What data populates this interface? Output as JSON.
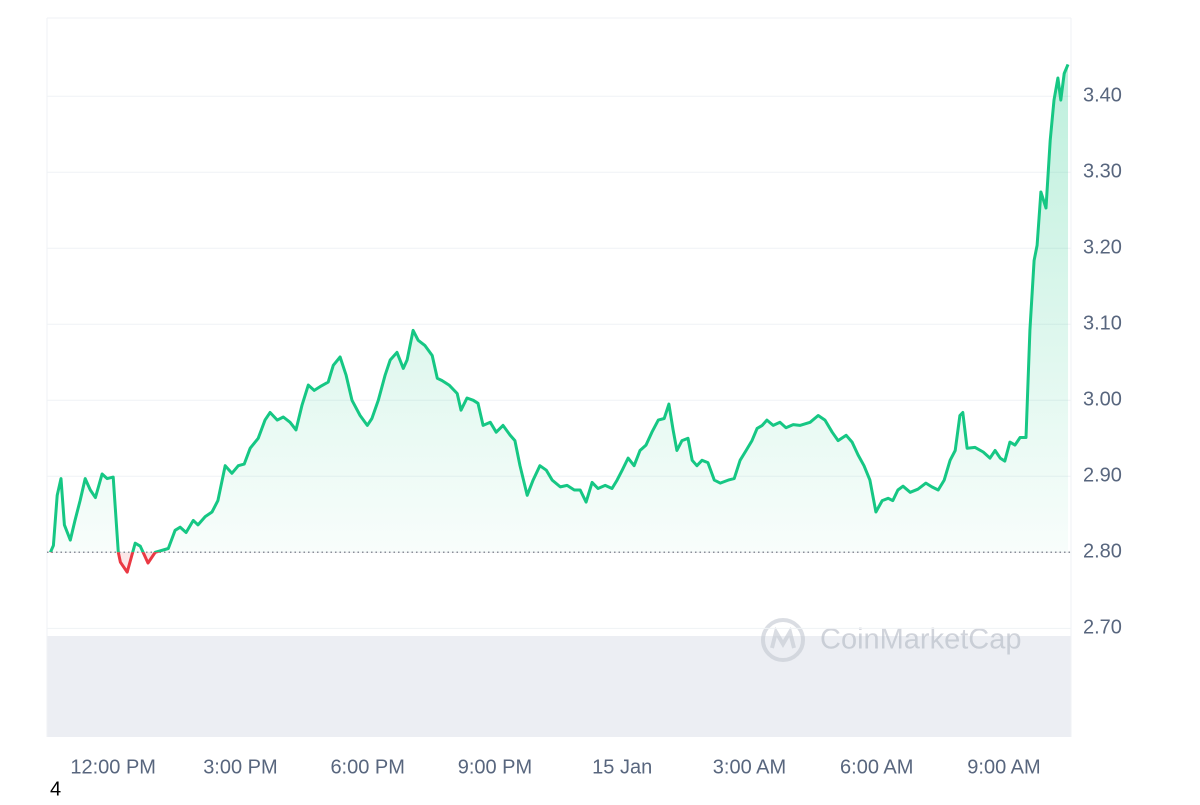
{
  "chart_data": {
    "type": "line",
    "x": [
      10.52,
      10.59,
      10.68,
      10.77,
      10.85,
      10.99,
      11.1,
      11.22,
      11.34,
      11.46,
      11.58,
      11.74,
      11.86,
      12.0,
      12.12,
      12.17,
      12.33,
      12.52,
      12.64,
      12.82,
      12.99,
      13.18,
      13.3,
      13.46,
      13.58,
      13.72,
      13.89,
      14.0,
      14.17,
      14.33,
      14.47,
      14.64,
      14.8,
      14.95,
      15.09,
      15.23,
      15.42,
      15.58,
      15.7,
      15.87,
      16.01,
      16.17,
      16.31,
      16.45,
      16.6,
      16.74,
      16.88,
      17.07,
      17.19,
      17.35,
      17.49,
      17.63,
      17.82,
      17.99,
      18.1,
      18.25,
      18.41,
      18.53,
      18.69,
      18.84,
      18.93,
      19.07,
      19.19,
      19.35,
      19.52,
      19.64,
      19.75,
      19.92,
      20.11,
      20.2,
      20.34,
      20.49,
      20.6,
      20.72,
      20.89,
      21.03,
      21.19,
      21.36,
      21.47,
      21.59,
      21.76,
      21.9,
      22.06,
      22.21,
      22.35,
      22.54,
      22.7,
      22.87,
      23.01,
      23.15,
      23.29,
      23.43,
      23.6,
      23.76,
      23.88,
      24.0,
      24.14,
      24.28,
      24.42,
      24.56,
      24.7,
      24.85,
      24.99,
      25.1,
      25.2,
      25.29,
      25.41,
      25.55,
      25.65,
      25.76,
      25.88,
      26.02,
      26.17,
      26.31,
      26.5,
      26.64,
      26.78,
      26.92,
      27.06,
      27.18,
      27.3,
      27.41,
      27.56,
      27.72,
      27.86,
      28.03,
      28.19,
      28.43,
      28.62,
      28.78,
      28.95,
      29.09,
      29.28,
      29.42,
      29.56,
      29.7,
      29.84,
      29.98,
      30.13,
      30.27,
      30.38,
      30.5,
      30.62,
      30.79,
      30.97,
      31.16,
      31.3,
      31.45,
      31.59,
      31.73,
      31.85,
      31.96,
      32.03,
      32.13,
      32.32,
      32.51,
      32.67,
      32.79,
      32.91,
      33.02,
      33.14,
      33.26,
      33.38,
      33.52,
      33.61,
      33.71,
      33.78,
      33.87,
      33.99,
      34.09,
      34.18,
      34.27,
      34.34,
      34.42,
      34.51
    ],
    "series": [
      {
        "color": "#16c784",
        "values": [
          2.8,
          2.809,
          2.875,
          2.897,
          2.836,
          2.816,
          2.842,
          2.868,
          2.897,
          2.882,
          2.872,
          2.903,
          2.897,
          2.899,
          2.8,
          2.787,
          2.774,
          2.812,
          2.808,
          2.786,
          2.8,
          2.803,
          2.805,
          2.829,
          2.833,
          2.826,
          2.842,
          2.836,
          2.847,
          2.853,
          2.868,
          2.914,
          2.904,
          2.914,
          2.916,
          2.937,
          2.95,
          2.974,
          2.984,
          2.974,
          2.978,
          2.971,
          2.961,
          2.993,
          3.02,
          3.013,
          3.018,
          3.024,
          3.046,
          3.057,
          3.033,
          3.0,
          2.98,
          2.967,
          2.976,
          3.0,
          3.033,
          3.053,
          3.063,
          3.042,
          3.053,
          3.092,
          3.079,
          3.072,
          3.059,
          3.029,
          3.026,
          3.02,
          3.009,
          2.987,
          3.003,
          3.0,
          2.996,
          2.967,
          2.971,
          2.958,
          2.967,
          2.954,
          2.947,
          2.914,
          2.875,
          2.895,
          2.914,
          2.908,
          2.895,
          2.886,
          2.888,
          2.882,
          2.882,
          2.866,
          2.892,
          2.884,
          2.888,
          2.884,
          2.895,
          2.908,
          2.924,
          2.914,
          2.934,
          2.941,
          2.958,
          2.974,
          2.976,
          2.995,
          2.961,
          2.934,
          2.947,
          2.95,
          2.921,
          2.914,
          2.921,
          2.918,
          2.895,
          2.891,
          2.895,
          2.897,
          2.921,
          2.934,
          2.947,
          2.963,
          2.967,
          2.974,
          2.967,
          2.971,
          2.964,
          2.968,
          2.967,
          2.971,
          2.98,
          2.974,
          2.958,
          2.947,
          2.954,
          2.945,
          2.928,
          2.914,
          2.895,
          2.853,
          2.868,
          2.871,
          2.868,
          2.882,
          2.887,
          2.879,
          2.883,
          2.891,
          2.886,
          2.882,
          2.895,
          2.921,
          2.934,
          2.98,
          2.984,
          2.937,
          2.938,
          2.932,
          2.924,
          2.934,
          2.924,
          2.92,
          2.945,
          2.941,
          2.951,
          2.951,
          3.092,
          3.184,
          3.204,
          3.274,
          3.253,
          3.342,
          3.395,
          3.424,
          3.395,
          3.43,
          3.442
        ]
      }
    ],
    "baseline": 2.8,
    "below_color": "#ea3943",
    "xlim": [
      10.44,
      34.58
    ],
    "ylim": [
      2.557,
      3.503
    ],
    "xticks": [
      {
        "value": 12,
        "label": "12:00 PM"
      },
      {
        "value": 15,
        "label": "3:00 PM"
      },
      {
        "value": 18,
        "label": "6:00 PM"
      },
      {
        "value": 21,
        "label": "9:00 PM"
      },
      {
        "value": 24,
        "label": "15 Jan"
      },
      {
        "value": 27,
        "label": "3:00 AM"
      },
      {
        "value": 30,
        "label": "6:00 AM"
      },
      {
        "value": 33,
        "label": "9:00 AM"
      }
    ],
    "yticks": [
      {
        "value": 2.7,
        "label": "2.70"
      },
      {
        "value": 2.8,
        "label": "2.80"
      },
      {
        "value": 2.9,
        "label": "2.90"
      },
      {
        "value": 3.0,
        "label": "3.00"
      },
      {
        "value": 3.1,
        "label": "3.10"
      },
      {
        "value": 3.2,
        "label": "3.20"
      },
      {
        "value": 3.3,
        "label": "3.30"
      },
      {
        "value": 3.4,
        "label": "3.40"
      }
    ],
    "grid": true
  },
  "watermark": "CoinMarketCap",
  "footer": "4"
}
